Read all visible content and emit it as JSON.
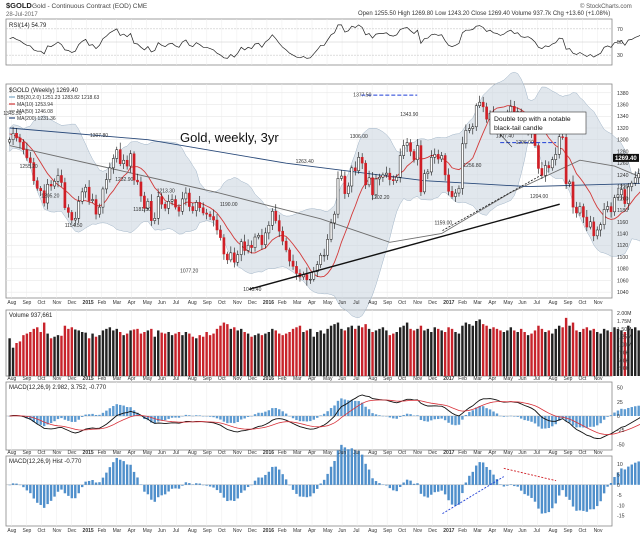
{
  "header": {
    "symbol": "$GOLD",
    "description": "Gold - Continuous Contract (EOD) CME",
    "date": "28-Jul-2017",
    "ohlc_line": "Open 1255.50  High 1269.80  Low 1243.20  Close 1269.40  Volume 937.7k  Chg +13.60 (+1.08%)",
    "watermark": "© StockCharts.com"
  },
  "panels": {
    "rsi": {
      "label": "RSI(14) 54.79",
      "ticks": [
        "70",
        "50",
        "30"
      ]
    },
    "price": {
      "label": "$GOLD (Weekly) 1269.40",
      "legend": [
        {
          "text": "BB(20,2.0) 1251.23 1283.82 1218.63",
          "color": "#7aa6c4"
        },
        {
          "text": "MA(10) 1253.94",
          "color": "#d23a3a"
        },
        {
          "text": "MA(50) 1246.08",
          "color": "#7a7a7a"
        },
        {
          "text": "MA(200) 1231.36",
          "color": "#2a4a7a"
        }
      ],
      "annotation_title": "Gold, weekly, 3yr",
      "annotation_note_1": "Double top with a notable",
      "annotation_note_2": "black-tail candle",
      "last_price_tag": "1269.40",
      "ticks": [
        "1380",
        "1360",
        "1340",
        "1320",
        "1300",
        "1280",
        "1260",
        "1240",
        "1220",
        "1200",
        "1180",
        "1160",
        "1140",
        "1120",
        "1100",
        "1080",
        "1060",
        "1040"
      ],
      "price_labels": [
        {
          "text": "1345.50",
          "x": 2014.58,
          "y": 1345.5
        },
        {
          "text": "1255.20",
          "x": 2014.67,
          "y": 1255.2
        },
        {
          "text": "1205.20",
          "x": 2014.79,
          "y": 1205.2
        },
        {
          "text": "1154.50",
          "x": 2014.92,
          "y": 1154.5
        },
        {
          "text": "1307.80",
          "x": 2015.06,
          "y": 1307.8
        },
        {
          "text": "1232.90",
          "x": 2015.2,
          "y": 1232.9
        },
        {
          "text": "1181.50",
          "x": 2015.3,
          "y": 1181.5
        },
        {
          "text": "1213.30",
          "x": 2015.43,
          "y": 1213.3
        },
        {
          "text": "1077.20",
          "x": 2015.56,
          "y": 1077.2
        },
        {
          "text": "1190.00",
          "x": 2015.78,
          "y": 1190.0
        },
        {
          "text": "1045.40",
          "x": 2015.91,
          "y": 1045.4
        },
        {
          "text": "1263.40",
          "x": 2016.2,
          "y": 1263.4
        },
        {
          "text": "1377.50",
          "x": 2016.52,
          "y": 1377.5
        },
        {
          "text": "1306.00",
          "x": 2016.5,
          "y": 1306.0
        },
        {
          "text": "1202.20",
          "x": 2016.62,
          "y": 1202.2
        },
        {
          "text": "1343.90",
          "x": 2016.78,
          "y": 1343.9
        },
        {
          "text": "1159.00",
          "x": 2016.97,
          "y": 1159.0
        },
        {
          "text": "1256.80",
          "x": 2017.13,
          "y": 1256.8
        },
        {
          "text": "1307.40",
          "x": 2017.31,
          "y": 1307.4
        },
        {
          "text": "1296.00",
          "x": 2017.42,
          "y": 1296.0
        },
        {
          "text": "1204.00",
          "x": 2017.5,
          "y": 1204.0
        }
      ]
    },
    "volume": {
      "label": "Volume 937,661",
      "ticks": [
        "2.00M",
        "1.75M",
        "1.50M",
        "1.25M",
        "1.00M",
        "750K",
        "500K",
        "250K"
      ]
    },
    "macd": {
      "label": "MACD(12,26,9) 2.982, 3.752, -0.770",
      "ticks": [
        "50",
        "25",
        "0",
        "-25",
        "-50"
      ]
    },
    "macd_hist": {
      "label": "MACD(12,26,9) Hist -0.770",
      "ticks": [
        "10",
        "5",
        "0",
        "-5",
        "-10",
        "-15"
      ]
    }
  },
  "xaxis": {
    "labels": [
      "Aug",
      "Sep",
      "Oct",
      "Nov",
      "Dec",
      "2015",
      "Feb",
      "Mar",
      "Apr",
      "May",
      "Jun",
      "Jul",
      "Aug",
      "Sep",
      "Oct",
      "Nov",
      "Dec",
      "2016",
      "Feb",
      "Mar",
      "Apr",
      "May",
      "Jun",
      "Jul",
      "Aug",
      "Sep",
      "Oct",
      "Nov",
      "Dec",
      "2017",
      "Feb",
      "Mar",
      "Apr",
      "May",
      "Jun",
      "Jul",
      "Aug",
      "Sep",
      "Oct",
      "Nov"
    ],
    "bold_labels": [
      "2015",
      "2016",
      "2017"
    ]
  },
  "chart_data": {
    "type": "candlestick",
    "title": "Gold, weekly, 3yr",
    "x_start": "2014-07-28",
    "interval": "weekly",
    "xlim": [
      "2014-07-21",
      "2017-11-28"
    ],
    "ylim": [
      1030,
      1395
    ],
    "close": [
      1300,
      1311,
      1303,
      1296,
      1283,
      1269,
      1261,
      1230,
      1217,
      1213,
      1192,
      1224,
      1221,
      1229,
      1239,
      1227,
      1184,
      1176,
      1163,
      1166,
      1195,
      1211,
      1219,
      1196,
      1198,
      1173,
      1185,
      1216,
      1232,
      1252,
      1268,
      1283,
      1259,
      1265,
      1255,
      1276,
      1231,
      1228,
      1204,
      1183,
      1195,
      1162,
      1166,
      1203,
      1190,
      1183,
      1195,
      1198,
      1185,
      1178,
      1199,
      1209,
      1186,
      1179,
      1193,
      1184,
      1175,
      1173,
      1169,
      1163,
      1146,
      1133,
      1105,
      1095,
      1107,
      1091,
      1104,
      1126,
      1111,
      1120,
      1116,
      1134,
      1137,
      1121,
      1141,
      1154,
      1178,
      1162,
      1144,
      1127,
      1112,
      1093,
      1084,
      1072,
      1066,
      1070,
      1061,
      1062,
      1075,
      1087,
      1103,
      1103,
      1130,
      1158,
      1173,
      1234,
      1238,
      1208,
      1221,
      1252,
      1247,
      1270,
      1260,
      1223,
      1235,
      1206,
      1233,
      1236,
      1240,
      1243,
      1232,
      1230,
      1236,
      1273,
      1290,
      1295,
      1280,
      1266,
      1290,
      1211,
      1242,
      1245,
      1270,
      1275,
      1267,
      1273,
      1240,
      1212,
      1203,
      1209,
      1217,
      1293,
      1316,
      1319,
      1322,
      1358,
      1364,
      1356,
      1335,
      1345,
      1332,
      1328,
      1315,
      1328,
      1347,
      1357,
      1341,
      1348,
      1323,
      1317,
      1321,
      1310,
      1290,
      1251,
      1239,
      1256,
      1252,
      1266,
      1275,
      1305,
      1304,
      1225,
      1228,
      1185,
      1175,
      1186,
      1168,
      1151,
      1160,
      1136,
      1146,
      1155,
      1181,
      1186,
      1177,
      1201,
      1206,
      1215,
      1191,
      1220,
      1226,
      1235,
      1242,
      1256,
      1259,
      1229,
      1248,
      1255,
      1207,
      1195,
      1202,
      1216,
      1233,
      1247,
      1250,
      1249,
      1269,
      1284,
      1291,
      1274,
      1273,
      1258,
      1249,
      1268,
      1282,
      1281,
      1269,
      1270,
      1260,
      1228,
      1225,
      1255,
      1262,
      1255,
      1269
    ],
    "ma10": [
      1310,
      1308,
      1306,
      1303,
      1299,
      1293,
      1287,
      1280,
      1270,
      1261,
      1251,
      1242,
      1235,
      1228,
      1223,
      1219,
      1214,
      1209,
      1203,
      1198,
      1196,
      1196,
      1196,
      1194,
      1192,
      1188,
      1187,
      1190,
      1197,
      1206,
      1213,
      1222,
      1230,
      1238,
      1243,
      1253,
      1254,
      1254,
      1251,
      1246,
      1238,
      1228,
      1218,
      1212,
      1205,
      1196,
      1193,
      1191,
      1188,
      1187,
      1189,
      1193,
      1194,
      1192,
      1193,
      1192,
      1190,
      1187,
      1184,
      1180,
      1175,
      1167,
      1159,
      1149,
      1141,
      1132,
      1125,
      1120,
      1114,
      1110,
      1107,
      1107,
      1110,
      1113,
      1115,
      1122,
      1129,
      1133,
      1136,
      1137,
      1135,
      1129,
      1122,
      1114,
      1106,
      1097,
      1088,
      1078,
      1071,
      1067,
      1066,
      1067,
      1072,
      1080,
      1091,
      1107,
      1125,
      1140,
      1155,
      1172,
      1187,
      1203,
      1217,
      1226,
      1233,
      1234,
      1233,
      1236,
      1238,
      1238,
      1237,
      1236,
      1238,
      1243,
      1247,
      1255,
      1260,
      1265,
      1270,
      1267,
      1268,
      1270,
      1273,
      1273,
      1271,
      1269,
      1265,
      1260,
      1252,
      1250,
      1249,
      1253,
      1259,
      1263,
      1269,
      1283,
      1298,
      1312,
      1325,
      1339,
      1350,
      1354,
      1355,
      1356,
      1358,
      1358,
      1355,
      1354,
      1351,
      1347,
      1343,
      1341,
      1338,
      1330,
      1320,
      1312,
      1303,
      1296,
      1290,
      1286,
      1284,
      1275,
      1268,
      1255,
      1242,
      1235,
      1227,
      1218,
      1209,
      1196,
      1185,
      1177,
      1170,
      1166,
      1164,
      1165,
      1169,
      1175,
      1178,
      1186,
      1194,
      1202,
      1208,
      1215,
      1222,
      1225,
      1229,
      1233,
      1230,
      1226,
      1224,
      1222,
      1220,
      1220,
      1220,
      1221,
      1223,
      1226,
      1229,
      1234,
      1240,
      1246,
      1250,
      1255,
      1262,
      1268,
      1270,
      1271,
      1271,
      1271,
      1269,
      1266,
      1263,
      1261,
      1259,
      1259,
      1258
    ],
    "ma50_points": [
      [
        0,
        1290
      ],
      [
        30,
        1250
      ],
      [
        60,
        1210
      ],
      [
        90,
        1165
      ],
      [
        110,
        1125
      ],
      [
        125,
        1140
      ],
      [
        145,
        1210
      ],
      [
        165,
        1265
      ],
      [
        175,
        1255
      ],
      [
        185,
        1230
      ],
      [
        205,
        1235
      ],
      [
        216,
        1246
      ]
    ],
    "ma200_points": [
      [
        0,
        1320
      ],
      [
        40,
        1300
      ],
      [
        80,
        1260
      ],
      [
        120,
        1230
      ],
      [
        150,
        1220
      ],
      [
        216,
        1231
      ]
    ],
    "rsi_series": [
      55,
      57,
      54,
      52,
      48,
      45,
      44,
      38,
      36,
      36,
      32,
      44,
      43,
      46,
      50,
      46,
      38,
      37,
      34,
      36,
      46,
      51,
      54,
      45,
      46,
      40,
      45,
      55,
      59,
      64,
      67,
      70,
      60,
      62,
      58,
      63,
      48,
      47,
      42,
      38,
      43,
      35,
      37,
      49,
      45,
      43,
      47,
      48,
      44,
      42,
      50,
      53,
      45,
      43,
      49,
      46,
      42,
      42,
      40,
      38,
      33,
      30,
      26,
      25,
      31,
      27,
      33,
      42,
      38,
      42,
      40,
      47,
      48,
      42,
      50,
      54,
      61,
      55,
      48,
      42,
      38,
      33,
      30,
      27,
      26,
      28,
      25,
      26,
      32,
      38,
      45,
      45,
      53,
      61,
      64,
      76,
      76,
      65,
      67,
      74,
      72,
      76,
      72,
      61,
      63,
      56,
      62,
      63,
      63,
      64,
      60,
      59,
      61,
      69,
      71,
      72,
      67,
      63,
      68,
      48,
      55,
      56,
      61,
      62,
      60,
      61,
      52,
      45,
      43,
      45,
      48,
      64,
      68,
      68,
      69,
      74,
      75,
      72,
      66,
      68,
      64,
      63,
      60,
      62,
      66,
      68,
      63,
      64,
      58,
      57,
      58,
      55,
      50,
      42,
      40,
      44,
      43,
      47,
      49,
      56,
      55,
      39,
      40,
      33,
      31,
      34,
      31,
      28,
      31,
      27,
      30,
      33,
      42,
      44,
      42,
      49,
      50,
      52,
      45,
      53,
      54,
      57,
      59,
      62,
      62,
      53,
      57,
      59,
      46,
      43,
      45,
      49,
      54,
      57,
      58,
      58,
      63,
      66,
      67,
      60,
      60,
      55,
      52,
      58,
      61,
      61,
      57,
      57,
      54,
      45,
      44,
      54,
      56,
      54,
      55
    ],
    "volume": [
      1200,
      900,
      1050,
      1100,
      1300,
      1350,
      1400,
      1500,
      1550,
      1400,
      1700,
      1350,
      1200,
      1250,
      1300,
      1280,
      1600,
      1500,
      1550,
      1480,
      1450,
      1400,
      1380,
      1200,
      1350,
      1250,
      1300,
      1450,
      1500,
      1550,
      1450,
      1500,
      1400,
      1300,
      1350,
      1450,
      1480,
      1500,
      1350,
      1400,
      1450,
      1500,
      1250,
      1450,
      1380,
      1350,
      1400,
      1300,
      1350,
      1400,
      1300,
      1400,
      1350,
      1250,
      1200,
      1300,
      1250,
      1400,
      1300,
      1350,
      1500,
      1600,
      1700,
      1650,
      1500,
      1550,
      1450,
      1500,
      1400,
      1350,
      1250,
      1300,
      1350,
      1300,
      1350,
      1400,
      1500,
      1450,
      1350,
      1300,
      1350,
      1400,
      1500,
      1550,
      1600,
      1400,
      1450,
      1500,
      1250,
      1400,
      1450,
      1350,
      1500,
      1600,
      1650,
      1700,
      1500,
      1450,
      1550,
      1600,
      1500,
      1600,
      1550,
      1650,
      1500,
      1400,
      1450,
      1500,
      1550,
      1450,
      1300,
      1350,
      1400,
      1550,
      1600,
      1700,
      1500,
      1450,
      1500,
      1600,
      1450,
      1500,
      1400,
      1550,
      1500,
      1450,
      1400,
      1550,
      1500,
      1400,
      1350,
      1600,
      1700,
      1650,
      1600,
      1750,
      1800,
      1650,
      1600,
      1500,
      1550,
      1500,
      1450,
      1400,
      1450,
      1550,
      1450,
      1400,
      1500,
      1400,
      1300,
      1350,
      1450,
      1600,
      1500,
      1400,
      1450,
      1350,
      1500,
      1600,
      1550,
      1850,
      1600,
      1700,
      1450,
      1400,
      1500,
      1550,
      1450,
      1500,
      1400,
      1350,
      1500,
      1450,
      1400,
      1550,
      1500,
      1450,
      1400,
      1600,
      1500,
      1550,
      1450,
      1500,
      1400,
      1450,
      1500,
      1550,
      1400,
      1500,
      1350,
      1400,
      1450,
      1500,
      1550,
      1450,
      1400,
      1500,
      1550,
      1450,
      1500,
      1400,
      1350,
      1450,
      1500,
      1400,
      1450,
      1500,
      1400,
      1350,
      1400,
      1500,
      1450,
      1350,
      938
    ],
    "drawings": {
      "support_line": [
        [
          2015.9,
          1045
        ],
        [
          2017.62,
          1190
        ]
      ],
      "inner_support": [
        [
          2016.97,
          1145
        ],
        [
          2017.52,
          1240
        ]
      ],
      "top_2016": [
        [
          2016.52,
          1376
        ],
        [
          2016.83,
          1376
        ]
      ],
      "top_2017": [
        [
          2017.29,
          1295
        ],
        [
          2017.6,
          1295
        ]
      ],
      "macd_div_low": [
        [
          2016.97,
          -14
        ],
        [
          2017.31,
          4
        ]
      ],
      "macd_div_high": [
        [
          2017.31,
          8
        ],
        [
          2017.6,
          2
        ]
      ]
    }
  }
}
